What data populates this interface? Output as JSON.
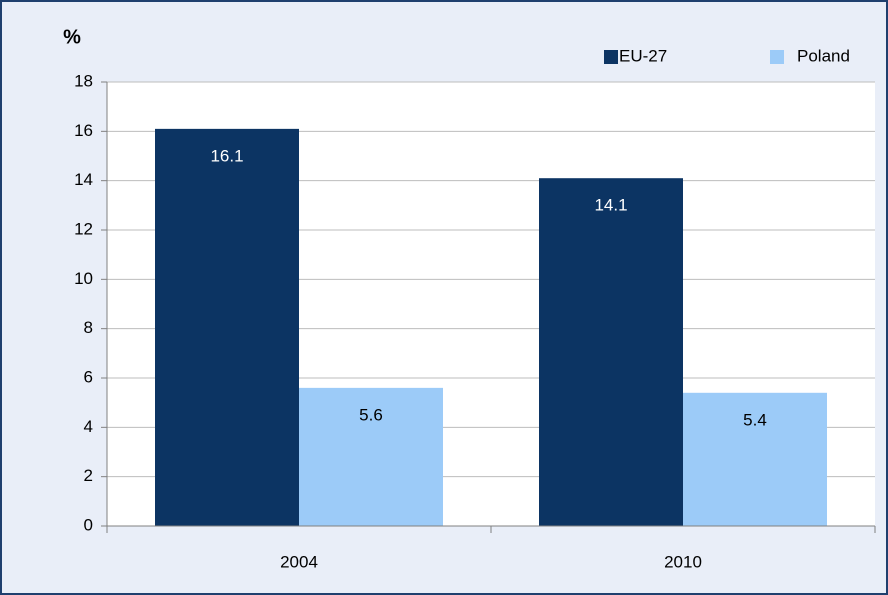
{
  "chart_data": {
    "type": "bar",
    "y_label": "%",
    "categories": [
      "2004",
      "2010"
    ],
    "series": [
      {
        "name": "EU-27",
        "color": "#0c3463",
        "values": [
          16.1,
          14.1
        ]
      },
      {
        "name": "Poland",
        "color": "#9ccbf8",
        "values": [
          5.6,
          5.4
        ]
      }
    ],
    "ylim": [
      0,
      18
    ],
    "yticks": [
      0,
      2,
      4,
      6,
      8,
      10,
      12,
      14,
      16,
      18
    ],
    "grid": true,
    "legend": "top-right"
  }
}
